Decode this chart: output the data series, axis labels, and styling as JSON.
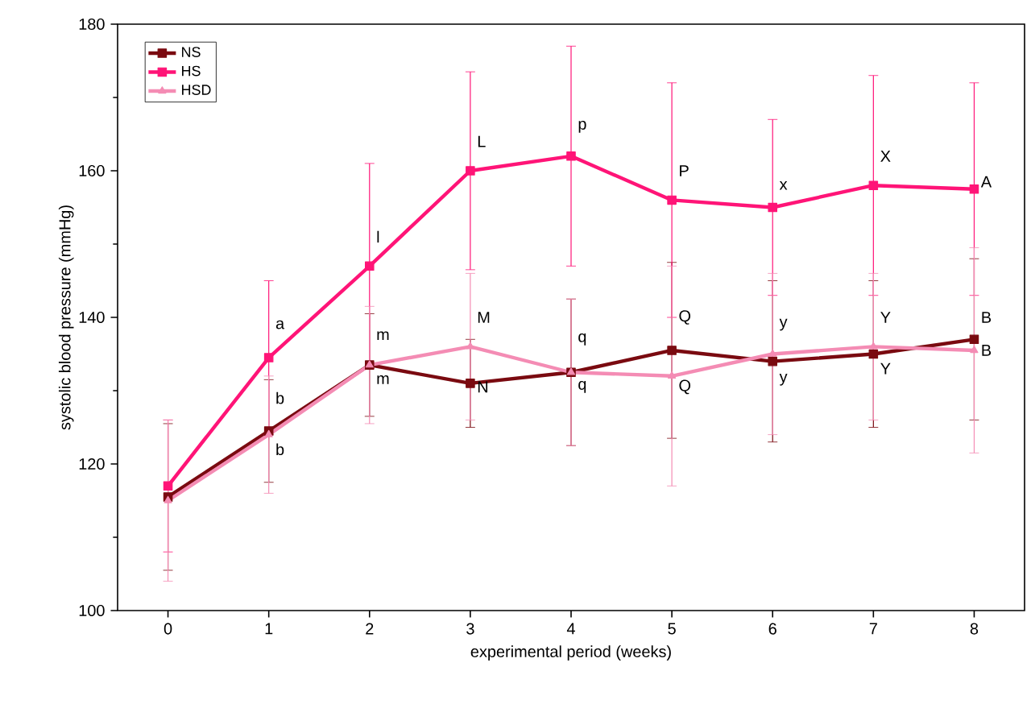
{
  "chart_data": {
    "type": "line",
    "xlabel": "experimental period (weeks)",
    "ylabel": "systolic blood pressure (mmHg)",
    "x": [
      0,
      1,
      2,
      3,
      4,
      5,
      6,
      7,
      8
    ],
    "series": [
      {
        "name": "NS",
        "color": "#7a0a10",
        "marker": "square",
        "values": [
          115.5,
          124.5,
          133.5,
          131,
          132.5,
          135.5,
          134,
          135,
          137
        ],
        "errors": [
          10,
          7,
          7,
          6,
          10,
          12,
          11,
          10,
          11
        ]
      },
      {
        "name": "HS",
        "color": "#ff1477",
        "marker": "square",
        "values": [
          117,
          134.5,
          147,
          160,
          162,
          156,
          155,
          158,
          157.5
        ],
        "errors": [
          9,
          10.5,
          14,
          13.5,
          15,
          16,
          12,
          15,
          14.5
        ]
      },
      {
        "name": "HSD",
        "color": "#f48cb4",
        "marker": "triangle",
        "values": [
          115,
          124,
          133.5,
          136,
          132.5,
          132,
          135,
          136,
          135.5
        ],
        "errors": [
          11,
          8,
          8,
          10,
          10,
          15,
          11,
          10,
          14
        ]
      }
    ],
    "annotations": [
      {
        "text": "a",
        "x": 1,
        "y": 139
      },
      {
        "text": "l",
        "x": 2,
        "y": 151
      },
      {
        "text": "L",
        "x": 3,
        "y": 164
      },
      {
        "text": "p",
        "x": 4,
        "y": 166
      },
      {
        "text": "P",
        "x": 5,
        "y": 160
      },
      {
        "text": "x",
        "x": 6,
        "y": 158
      },
      {
        "text": "X",
        "x": 7,
        "y": 162
      },
      {
        "text": "A",
        "x": 8,
        "y": 158.5
      },
      {
        "text": "b",
        "x": 1,
        "y": 129
      },
      {
        "text": "b",
        "x": 1,
        "y": 122
      },
      {
        "text": "m",
        "x": 2,
        "y": 137.5
      },
      {
        "text": "m",
        "x": 2,
        "y": 131.5
      },
      {
        "text": "M",
        "x": 3,
        "y": 140
      },
      {
        "text": "N",
        "x": 3,
        "y": 130.5
      },
      {
        "text": "q",
        "x": 4,
        "y": 137
      },
      {
        "text": "q",
        "x": 4,
        "y": 130.5
      },
      {
        "text": "Q",
        "x": 5,
        "y": 140
      },
      {
        "text": "Q",
        "x": 5,
        "y": 130.5
      },
      {
        "text": "y",
        "x": 6,
        "y": 139
      },
      {
        "text": "y",
        "x": 6,
        "y": 131.5
      },
      {
        "text": "Y",
        "x": 7,
        "y": 140
      },
      {
        "text": "Y",
        "x": 7,
        "y": 133
      },
      {
        "text": "B",
        "x": 8,
        "y": 140
      },
      {
        "text": "B",
        "x": 8,
        "y": 135.5
      }
    ],
    "xlim": [
      -0.5,
      8.5
    ],
    "ylim": [
      100,
      180
    ],
    "xticks": [
      0,
      1,
      2,
      3,
      4,
      5,
      6,
      7,
      8
    ],
    "yticks": [
      100,
      120,
      140,
      160,
      180
    ],
    "legend": "top left",
    "grid": false,
    "line_style": "solid"
  }
}
